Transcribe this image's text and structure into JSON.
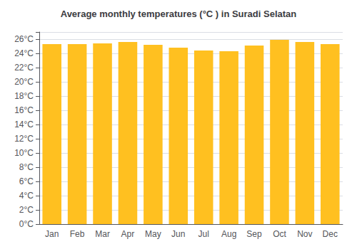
{
  "chart_data": {
    "type": "bar",
    "title": "Average monthly temperatures (°C ) in Suradi Selatan",
    "categories": [
      "Jan",
      "Feb",
      "Mar",
      "Apr",
      "May",
      "Jun",
      "Jul",
      "Aug",
      "Sep",
      "Oct",
      "Nov",
      "Dec"
    ],
    "values": [
      25.3,
      25.3,
      25.4,
      25.6,
      25.2,
      24.8,
      24.4,
      24.3,
      25.1,
      25.9,
      25.6,
      25.3
    ],
    "color": "#FFC020",
    "ylim": [
      0,
      27
    ],
    "yticks": [
      {
        "value": 0,
        "label": "0°C"
      },
      {
        "value": 2,
        "label": "2°C"
      },
      {
        "value": 4,
        "label": "4°C"
      },
      {
        "value": 6,
        "label": "6°C"
      },
      {
        "value": 8,
        "label": "8°C"
      },
      {
        "value": 10,
        "label": "10°C"
      },
      {
        "value": 12,
        "label": "12°C"
      },
      {
        "value": 14,
        "label": "14°C"
      },
      {
        "value": 16,
        "label": "16°C"
      },
      {
        "value": 18,
        "label": "18°C"
      },
      {
        "value": 20,
        "label": "20°C"
      },
      {
        "value": 22,
        "label": "22°C"
      },
      {
        "value": 24,
        "label": "24°C"
      },
      {
        "value": 26,
        "label": "26°C"
      }
    ],
    "grid": true
  }
}
